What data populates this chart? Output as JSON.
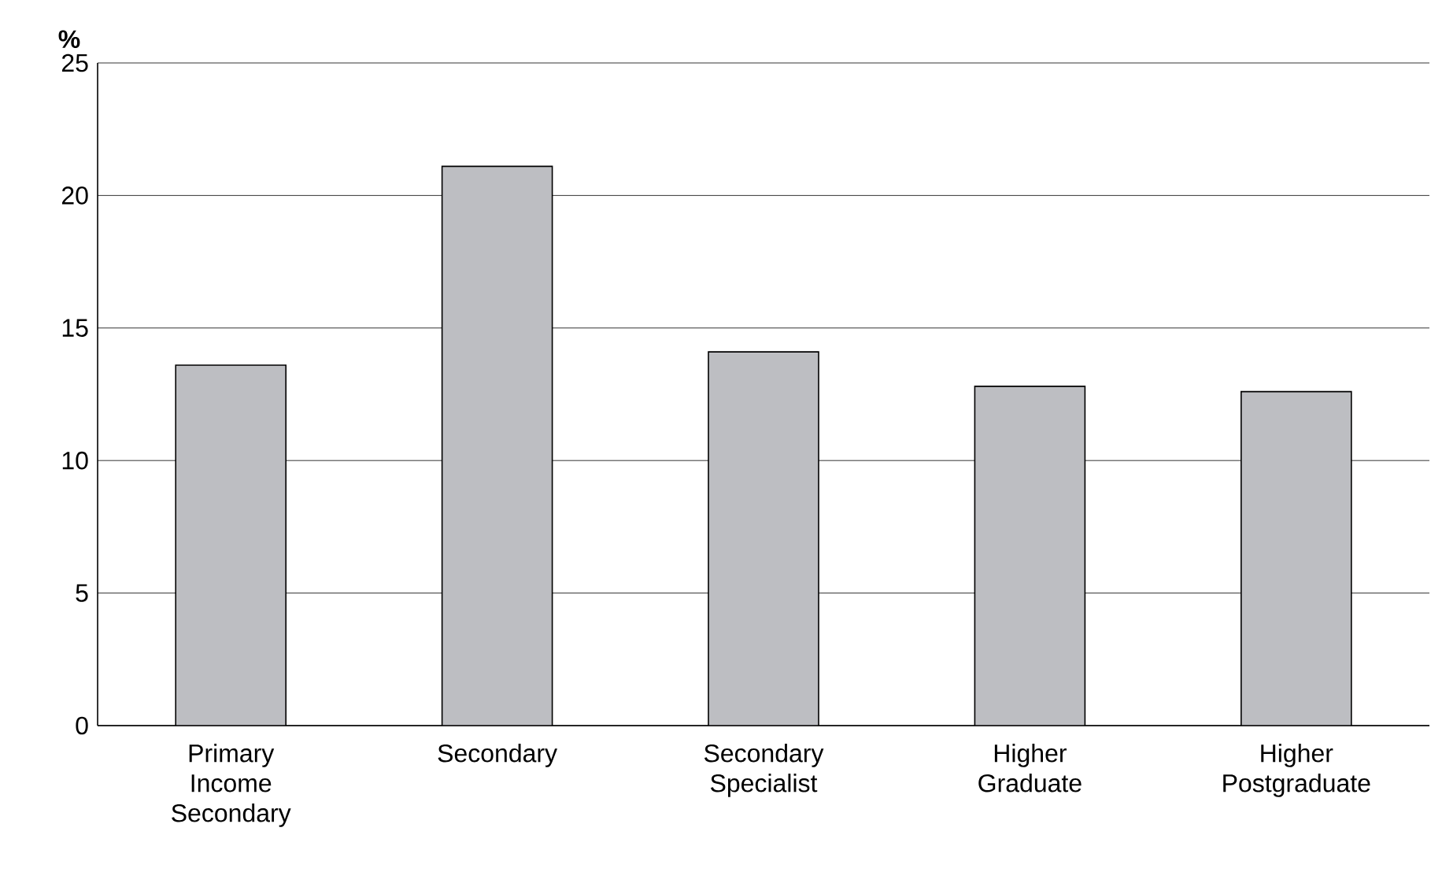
{
  "chart_data": {
    "type": "bar",
    "ylabel": "%",
    "categories": [
      "Primary Income Secondary",
      "Secondary",
      "Secondary Specialist",
      "Higher Graduate",
      "Higher Postgraduate"
    ],
    "values": [
      13.6,
      21.1,
      14.1,
      12.8,
      12.6
    ],
    "color": "#bdbec2",
    "ylim": [
      0,
      25
    ],
    "yticks": [
      0,
      5,
      10,
      15,
      20,
      25
    ],
    "grid": "y"
  }
}
